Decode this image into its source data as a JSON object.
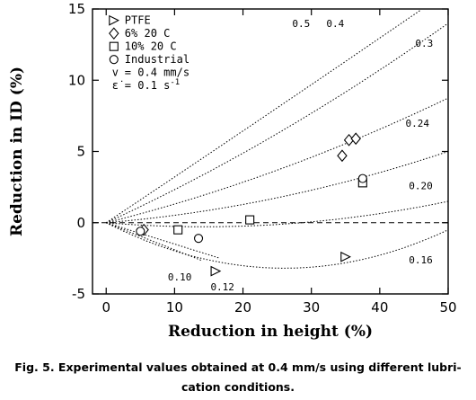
{
  "chart_data": {
    "type": "scatter",
    "xlabel": "Reduction in height (%)",
    "ylabel": "Reduction in ID (%)",
    "xlim": [
      -2,
      50
    ],
    "ylim": [
      -5,
      15
    ],
    "x_ticks": [
      "0",
      "10",
      "20",
      "30",
      "40",
      "50"
    ],
    "y_ticks": [
      "-5",
      "0",
      "5",
      "10",
      "15"
    ],
    "x_tick_values": [
      0,
      10,
      20,
      30,
      40,
      50
    ],
    "y_tick_values": [
      -5,
      0,
      5,
      10,
      15
    ],
    "legend": {
      "position": "top-left",
      "entries": [
        {
          "marker": "triangle-right",
          "label": "PTFE"
        },
        {
          "marker": "diamond",
          "label": "6% 20 C"
        },
        {
          "marker": "square",
          "label": "10% 20 C"
        },
        {
          "marker": "circle",
          "label": "Industrial"
        }
      ],
      "conditions": [
        {
          "symbol": "v",
          "text": "= 0.4 mm/s"
        },
        {
          "symbol": "ε̇",
          "text": "= 0.1 s",
          "superscript": "-1"
        }
      ]
    },
    "reference_line": {
      "y": 0,
      "style": "dashed"
    },
    "calibration_curves": [
      {
        "label": "0.5",
        "coef_x": 0.32,
        "coef_x2": 0.0001
      },
      {
        "label": "0.4",
        "coef_x": 0.22,
        "coef_x2": 0.0012
      },
      {
        "label": "0.3",
        "coef_x": 0.12,
        "coef_x2": 0.0011
      },
      {
        "label": "0.24",
        "coef_x": 0.04,
        "coef_x2": 0.0012
      },
      {
        "label": "0.20",
        "coef_x": -0.04,
        "coef_x2": 0.0014
      },
      {
        "label": "0.16",
        "coef_x": -0.245,
        "coef_x2": 0.0047
      },
      {
        "label": "0.12",
        "coef_x": -0.15,
        "coef_x2": 0.0
      },
      {
        "label": "0.10",
        "coef_x": -0.19,
        "coef_x2": 0.0
      }
    ],
    "series": [
      {
        "name": "PTFE",
        "marker": "triangle-right",
        "points": [
          [
            16,
            -3.4
          ],
          [
            35,
            -2.4
          ]
        ]
      },
      {
        "name": "6% 20 C",
        "marker": "diamond",
        "points": [
          [
            34.5,
            4.7
          ],
          [
            35.5,
            5.8
          ],
          [
            36.5,
            5.9
          ],
          [
            5.5,
            -0.5
          ]
        ]
      },
      {
        "name": "10% 20 C",
        "marker": "square",
        "points": [
          [
            10.5,
            -0.5
          ],
          [
            21,
            0.2
          ],
          [
            37.5,
            2.8
          ]
        ]
      },
      {
        "name": "Industrial",
        "marker": "circle",
        "points": [
          [
            5,
            -0.6
          ],
          [
            13.5,
            -1.1
          ],
          [
            37.5,
            3.1
          ]
        ]
      }
    ]
  },
  "caption": {
    "line1": "Fig. 5. Experimental values obtained at 0.4 mm/s using different lubri-",
    "line2": "cation conditions."
  }
}
